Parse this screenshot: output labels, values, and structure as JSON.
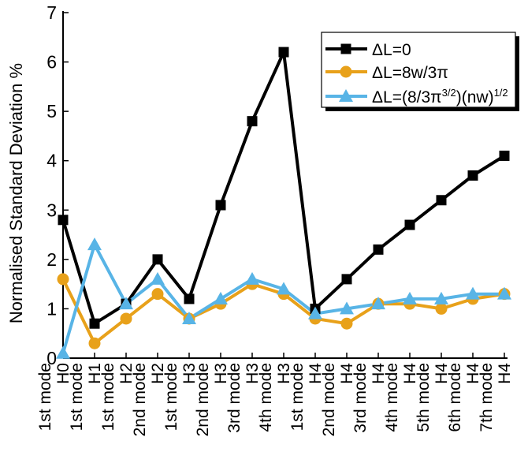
{
  "chart_data": {
    "type": "line",
    "ylabel": "Normalised Standard Deviation %",
    "xlabel": "",
    "ylim": [
      0,
      7
    ],
    "yticks": [
      0,
      1,
      2,
      3,
      4,
      5,
      6,
      7
    ],
    "grid": false,
    "legend_position": "top-right",
    "categories": [
      {
        "top": "H0",
        "bottom": "1st mode"
      },
      {
        "top": "H1",
        "bottom": "1st mode"
      },
      {
        "top": "H2",
        "bottom": "1st mode"
      },
      {
        "top": "H2",
        "bottom": "2nd mode"
      },
      {
        "top": "H3",
        "bottom": "1st mode"
      },
      {
        "top": "H3",
        "bottom": "2nd mode"
      },
      {
        "top": "H3",
        "bottom": "3rd mode"
      },
      {
        "top": "H3",
        "bottom": "4th mode"
      },
      {
        "top": "H4",
        "bottom": "1st mode"
      },
      {
        "top": "H4",
        "bottom": "2nd mode"
      },
      {
        "top": "H4",
        "bottom": "3rd mode"
      },
      {
        "top": "H4",
        "bottom": "4th mode"
      },
      {
        "top": "H4",
        "bottom": "5th mode"
      },
      {
        "top": "H4",
        "bottom": "6th mode"
      },
      {
        "top": "H4",
        "bottom": "7th mode"
      }
    ],
    "series": [
      {
        "name": "ΔL=0",
        "legend": {
          "main": "ΔL=0"
        },
        "color": "#000000",
        "marker": "square",
        "values": [
          2.8,
          0.7,
          1.1,
          2.0,
          1.2,
          3.1,
          4.8,
          6.2,
          1.0,
          1.6,
          2.2,
          2.7,
          3.2,
          3.7,
          4.1
        ]
      },
      {
        "name": "ΔL=8w/3π",
        "legend": {
          "main": "ΔL=8w/3π"
        },
        "color": "#E8A11A",
        "marker": "circle",
        "values": [
          1.6,
          0.3,
          0.8,
          1.3,
          0.8,
          1.1,
          1.5,
          1.3,
          0.8,
          0.7,
          1.1,
          1.1,
          1.0,
          1.2,
          1.3
        ]
      },
      {
        "name": "ΔL=(8/3π^(3/2))(nw)^(1/2)",
        "legend": {
          "part1": "ΔL=(8/3π",
          "sup1": "3/2",
          "part2": ")(nw)",
          "sup2": "1/2"
        },
        "color": "#58B4E6",
        "marker": "triangle",
        "values": [
          0.1,
          2.3,
          1.1,
          1.6,
          0.8,
          1.2,
          1.6,
          1.4,
          0.9,
          1.0,
          1.1,
          1.2,
          1.2,
          1.3,
          1.3
        ]
      }
    ]
  }
}
